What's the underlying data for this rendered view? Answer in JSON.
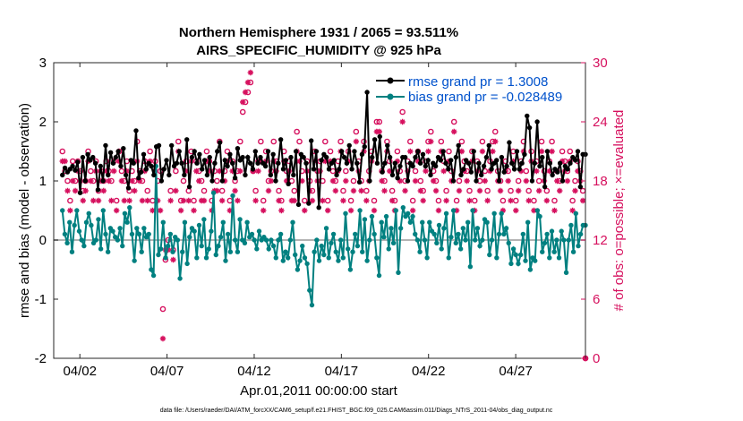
{
  "chart_data": {
    "type": "line",
    "title_line1": "Northern Hemisphere 1931 / 2065 = 93.511%",
    "title_line2": "AIRS_SPECIFIC_HUMIDITY @ 925 hPa",
    "ylabel_left": "rmse and bias (model - observation)",
    "ylabel_right": "# of obs: o=possible; ×=evaluated",
    "xlabel": "Apr.01,2011 00:00:00 start",
    "footer": "data file: /Users/raeder/DAI/ATM_forcXX/CAM6_setup/f.e21.FHIST_BGC.f09_025.CAM6assim.011/Diags_NTrS_2011-04/obs_diag_output.nc",
    "ylim_left": [
      -2,
      3
    ],
    "ylim_right": [
      0,
      30
    ],
    "xlim": [
      0.5,
      31
    ],
    "x_ticks": [
      2,
      7,
      12,
      17,
      22,
      27
    ],
    "x_tick_labels": [
      "04/02",
      "04/07",
      "04/12",
      "04/17",
      "04/22",
      "04/27"
    ],
    "y_left_ticks": [
      "-2",
      "-1",
      "0",
      "1",
      "2",
      "3"
    ],
    "y_right_ticks": [
      "0",
      "6",
      "12",
      "18",
      "24",
      "30"
    ],
    "colors": {
      "rmse": "#000000",
      "bias": "#008080",
      "obs": "#d6105e",
      "axis": "#262626",
      "zero_line": "#b3b3b3",
      "legend_text": "#0052cc"
    },
    "series": [
      {
        "name": "rmse grand pr = 1.3008",
        "key": "rmse",
        "values": [
          1.1,
          1.22,
          1.15,
          1.2,
          1.25,
          1.18,
          1.32,
          0.8,
          1.4,
          1.0,
          1.45,
          1.35,
          1.4,
          1.3,
          0.85,
          1.25,
          1.0,
          1.6,
          1.1,
          1.48,
          1.3,
          1.4,
          1.5,
          1.25,
          1.55,
          1.1,
          0.88,
          1.35,
          1.3,
          1.85,
          1.05,
          1.15,
          1.45,
          1.2,
          1.3,
          1.25,
          1.1,
          1.58,
          1.6,
          1.0,
          1.2,
          1.35,
          1.1,
          1.6,
          1.25,
          1.3,
          1.5,
          1.3,
          1.1,
          1.7,
          0.9,
          1.4,
          1.5,
          1.3,
          1.45,
          1.2,
          1.35,
          1.1,
          1.4,
          1.0,
          1.3,
          1.5,
          1.65,
          1.0,
          1.35,
          1.25,
          1.45,
          1.3,
          1.05,
          1.55,
          1.35,
          1.4,
          1.1,
          1.4,
          1.3,
          1.2,
          1.5,
          1.3,
          1.4,
          1.3,
          1.25,
          1.5,
          1.1,
          1.45,
          1.0,
          1.3,
          1.7,
          1.2,
          1.35,
          0.95,
          1.4,
          1.1,
          1.5,
          0.6,
          1.45,
          1.4,
          1.3,
          0.62,
          1.68,
          1.2,
          1.5,
          0.55,
          1.35,
          1.45,
          1.4,
          1.2,
          1.3,
          1.35,
          1.1,
          1.2,
          1.5,
          1.4,
          1.3,
          1.6,
          1.2,
          1.5,
          1.3,
          0.98,
          1.45,
          1.58,
          2.5,
          1.0,
          1.4,
          1.7,
          1.3,
          1.75,
          1.15,
          1.3,
          1.6,
          1.4,
          1.1,
          1.3,
          1.05,
          1.25,
          1.4,
          1.4,
          1.0,
          1.3,
          1.25,
          1.4,
          1.5,
          1.3,
          1.45,
          1.25,
          1.35,
          1.1,
          1.3,
          1.25,
          1.4,
          1.35,
          1.5,
          1.3,
          1.2,
          1.35,
          1.0,
          1.4,
          1.6,
          1.1,
          1.2,
          1.35,
          1.3,
          1.15,
          1.5,
          1.0,
          1.3,
          1.1,
          1.25,
          1.4,
          1.6,
          1.2,
          1.3,
          1.35,
          1.0,
          1.4,
          1.15,
          1.25,
          1.65,
          1.3,
          1.2,
          1.5,
          1.2,
          1.3,
          1.45,
          2.1,
          1.9,
          1.0,
          1.3,
          2.0,
          1.25,
          1.4,
          0.9,
          1.5,
          1.3,
          1.1,
          1.2,
          1.15,
          1.3,
          1.0,
          1.25,
          1.2,
          1.3,
          1.4,
          1.35,
          1.5,
          0.9,
          1.45,
          1.45
        ]
      },
      {
        "name": "bias grand pr = -0.028489",
        "key": "bias",
        "values": [
          0.5,
          0.1,
          -0.05,
          0.3,
          -0.2,
          0.25,
          0.5,
          0.15,
          0.0,
          -0.1,
          0.3,
          0.45,
          0.25,
          -0.05,
          0.0,
          0.35,
          -0.15,
          0.5,
          0.1,
          -0.2,
          0.2,
          0.15,
          0.05,
          0.0,
          0.2,
          -0.1,
          0.45,
          0.3,
          0.55,
          0.1,
          -0.35,
          0.2,
          0.1,
          -0.2,
          0.2,
          0.05,
          0.1,
          -0.5,
          -0.6,
          1.25,
          -0.25,
          -0.15,
          0.3,
          -0.3,
          -0.1,
          0.1,
          -0.2,
          0.05,
          0.0,
          -0.65,
          -0.2,
          0.3,
          -0.4,
          0.05,
          0.2,
          0.15,
          -0.3,
          0.25,
          -0.1,
          0.35,
          -0.3,
          -0.15,
          0.15,
          0.8,
          -0.25,
          -0.1,
          0.05,
          0.3,
          -0.35,
          0.1,
          -0.2,
          0.75,
          0.0,
          -0.2,
          0.35,
          0.0,
          -0.05,
          0.3,
          0.05,
          0.1,
          0.0,
          -0.15,
          0.15,
          0.0,
          0.05,
          0.0,
          -0.15,
          0.0,
          -0.1,
          -0.3,
          0.0,
          0.1,
          -0.35,
          -0.2,
          -0.3,
          0.0,
          0.3,
          -0.25,
          -0.5,
          -0.35,
          -0.1,
          -0.3,
          -0.4,
          -0.85,
          -1.1,
          -0.2,
          0.0,
          -0.35,
          -0.1,
          -0.25,
          0.2,
          -0.3,
          -0.05,
          0.1,
          -0.2,
          -0.35,
          0.0,
          -0.3,
          0.45,
          -0.15,
          -0.5,
          -0.2,
          0.1,
          -0.1,
          0.5,
          -0.2,
          0.35,
          -0.35,
          0.0,
          0.4,
          0.1,
          -0.3,
          -0.6,
          0.3,
          0.05,
          0.4,
          -0.15,
          0.2,
          -0.05,
          0.5,
          -0.55,
          0.2,
          0.55,
          0.4,
          0.45,
          0.3,
          0.4,
          0.1,
          0.0,
          -0.2,
          0.3,
          0.0,
          -0.3,
          0.3,
          0.15,
          0.1,
          -0.05,
          0.25,
          -0.15,
          0.2,
          0.45,
          -0.3,
          0.05,
          0.5,
          -0.05,
          0.1,
          -0.15,
          0.2,
          0.0,
          0.3,
          -0.45,
          0.5,
          0.0,
          0.2,
          -0.1,
          0.0,
          0.35,
          0.3,
          -0.25,
          0.0,
          0.45,
          -0.3,
          0.1,
          0.45,
          0.1,
          0.2,
          -0.05,
          -0.4,
          -0.15,
          -0.25,
          -0.4,
          -0.25,
          0.1,
          -0.35,
          0.3,
          -0.5,
          -0.3,
          -0.35,
          0.5,
          0.4,
          -0.2,
          -0.05,
          0.1,
          -0.3,
          0.15,
          -0.2,
          0.0,
          -0.3,
          0.15,
          0.0,
          -0.55,
          0.0,
          0.25,
          -0.2,
          0.45,
          -0.1,
          0.1,
          0.25,
          0.25
        ]
      }
    ],
    "obs_possible": [
      21,
      19,
      18,
      16,
      20,
      18,
      20,
      19,
      17,
      18,
      21,
      19,
      18,
      20,
      17,
      19,
      18,
      20,
      19,
      18,
      20,
      16,
      21,
      19,
      18,
      20,
      17,
      19,
      18,
      22,
      19,
      18,
      20,
      17,
      21,
      16,
      20,
      18,
      19,
      5,
      10,
      12,
      17,
      11,
      19,
      22,
      16,
      18,
      20,
      17,
      21,
      16,
      20,
      19,
      18,
      17,
      21,
      20,
      16,
      19,
      18,
      22,
      17,
      19,
      21,
      16,
      20,
      18,
      19,
      22,
      25,
      26,
      27,
      28,
      19,
      17,
      20,
      22,
      16,
      21,
      18,
      19,
      22,
      20,
      17,
      16,
      21,
      19,
      20,
      18,
      17,
      23,
      22,
      19,
      16,
      20,
      18,
      17,
      21,
      19,
      20,
      18,
      22,
      16,
      21,
      19,
      18,
      20,
      22,
      17,
      19,
      21,
      16,
      18,
      23,
      20,
      18,
      22,
      17,
      19,
      21,
      16,
      24,
      24,
      19,
      18,
      22,
      20,
      17,
      16,
      21,
      19,
      25,
      18,
      20,
      22,
      16,
      19,
      21,
      18,
      17,
      20,
      22,
      23,
      19,
      18,
      16,
      22,
      20,
      17,
      21,
      19,
      24,
      16,
      18,
      22,
      20,
      19,
      17,
      21,
      16,
      20,
      18,
      22,
      19,
      17,
      20,
      22,
      23,
      19,
      18,
      16,
      20,
      19,
      17,
      21,
      16,
      18,
      20,
      22,
      19,
      17,
      21,
      16,
      20,
      18,
      22,
      19,
      17,
      20,
      22,
      16,
      19,
      18,
      21,
      20,
      19,
      21,
      16,
      18,
      20,
      19,
      17,
      0
    ],
    "obs_evaluated": [
      20,
      20,
      17,
      15,
      18,
      17,
      19,
      18,
      16,
      17,
      20,
      18,
      16,
      19,
      16,
      18,
      17,
      19,
      18,
      16,
      19,
      15,
      20,
      18,
      16,
      19,
      16,
      18,
      17,
      20,
      18,
      16,
      19,
      16,
      20,
      15,
      19,
      16,
      15,
      2,
      11,
      11,
      16,
      10,
      17,
      21,
      15,
      16,
      19,
      16,
      20,
      15,
      19,
      18,
      16,
      16,
      20,
      19,
      15,
      17,
      17,
      19,
      16,
      18,
      20,
      15,
      19,
      17,
      16,
      19,
      26,
      27,
      28,
      29,
      19,
      16,
      19,
      20,
      15,
      20,
      17,
      18,
      20,
      19,
      16,
      15,
      20,
      18,
      19,
      16,
      16,
      21,
      20,
      18,
      15,
      19,
      17,
      16,
      20,
      18,
      19,
      16,
      20,
      15,
      20,
      18,
      17,
      19,
      21,
      16,
      18,
      20,
      15,
      17,
      22,
      19,
      17,
      21,
      16,
      18,
      20,
      15,
      23,
      23,
      18,
      17,
      21,
      19,
      16,
      15,
      20,
      18,
      24,
      17,
      19,
      21,
      15,
      18,
      20,
      17,
      16,
      19,
      21,
      22,
      18,
      17,
      15,
      21,
      19,
      16,
      20,
      18,
      23,
      15,
      17,
      21,
      19,
      18,
      16,
      20,
      15,
      19,
      17,
      21,
      18,
      16,
      19,
      21,
      22,
      18,
      17,
      15,
      19,
      18,
      16,
      20,
      15,
      17,
      19,
      21,
      18,
      16,
      20,
      15,
      19,
      17,
      21,
      18,
      16,
      19,
      21,
      15,
      18,
      17,
      20,
      19,
      18,
      20,
      15,
      17,
      19,
      18,
      16,
      0
    ]
  }
}
